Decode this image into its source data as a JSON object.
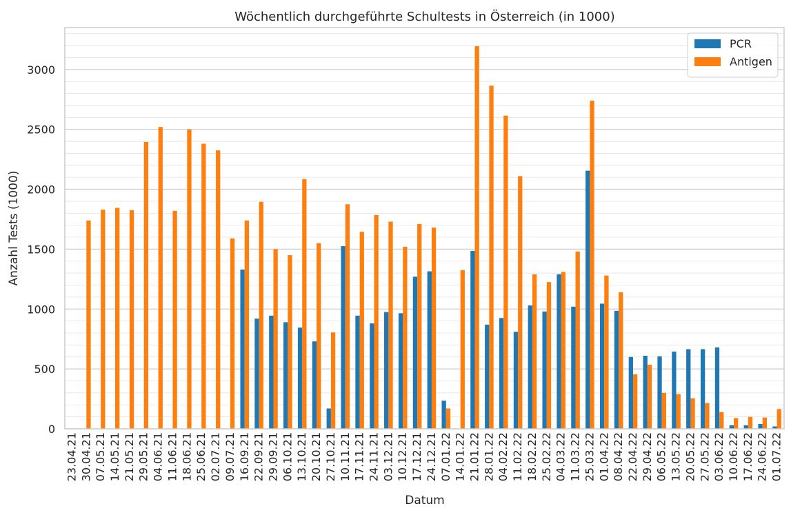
{
  "chart_data": {
    "type": "bar",
    "title": "Wöchentlich durchgeführte Schultests in Österreich (in 1000)",
    "xlabel": "Datum",
    "ylabel": "Anzahl Tests (1000)",
    "ylim": [
      0,
      3350
    ],
    "yticks": [
      0,
      500,
      1000,
      1500,
      2000,
      2500,
      3000
    ],
    "minor_gridlines": true,
    "legend_position": "top-right",
    "categories": [
      "23.04.21",
      "30.04.21",
      "07.05.21",
      "14.05.21",
      "21.05.21",
      "29.05.21",
      "04.06.21",
      "11.06.21",
      "18.06.21",
      "25.06.21",
      "02.07.21",
      "09.07.21",
      "16.09.21",
      "22.09.21",
      "29.09.21",
      "06.10.21",
      "13.10.21",
      "20.10.21",
      "27.10.21",
      "10.11.21",
      "17.11.21",
      "24.11.21",
      "03.12.21",
      "10.12.21",
      "17.12.21",
      "24.12.21",
      "07.01.22",
      "14.01.22",
      "21.01.22",
      "28.01.22",
      "04.02.22",
      "11.02.22",
      "18.02.22",
      "25.02.22",
      "04.03.22",
      "11.03.22",
      "25.03.22",
      "01.04.22",
      "08.04.22",
      "22.04.22",
      "29.04.22",
      "06.05.22",
      "13.05.22",
      "20.05.22",
      "27.05.22",
      "03.06.22",
      "10.06.22",
      "17.06.22",
      "24.06.22",
      "01.07.22"
    ],
    "series": [
      {
        "name": "PCR",
        "color": "#1f77b4",
        "values": [
          0,
          0,
          0,
          0,
          0,
          0,
          0,
          0,
          0,
          0,
          0,
          0,
          1330,
          920,
          945,
          890,
          845,
          730,
          170,
          1525,
          945,
          880,
          975,
          965,
          1270,
          1315,
          235,
          0,
          1485,
          870,
          925,
          810,
          1030,
          980,
          1290,
          1020,
          2155,
          1045,
          985,
          600,
          610,
          605,
          645,
          665,
          665,
          680,
          30,
          30,
          40,
          20
        ]
      },
      {
        "name": "Antigen",
        "color": "#ff7f0e",
        "values": [
          0,
          1740,
          1830,
          1845,
          1825,
          2395,
          2520,
          1820,
          2500,
          2380,
          2325,
          1590,
          1740,
          1895,
          1500,
          1450,
          2085,
          1550,
          805,
          1875,
          1645,
          1785,
          1730,
          1520,
          1710,
          1680,
          170,
          1325,
          3195,
          2865,
          2615,
          2110,
          1290,
          1225,
          1310,
          1480,
          2740,
          1280,
          1140,
          455,
          535,
          300,
          290,
          255,
          215,
          140,
          90,
          100,
          95,
          165
        ]
      }
    ]
  }
}
